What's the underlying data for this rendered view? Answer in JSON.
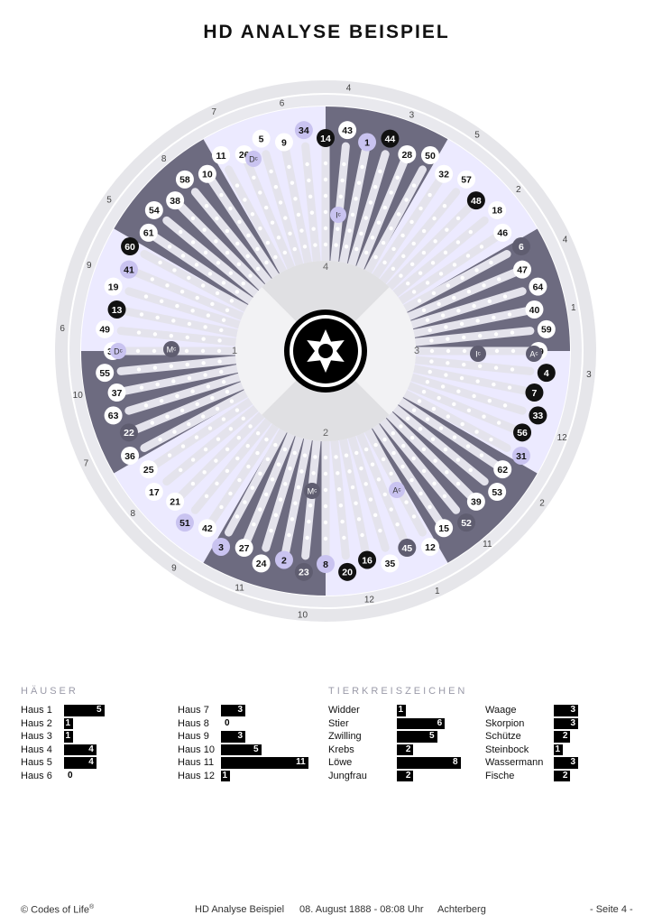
{
  "title": "HD ANALYSE BEISPIEL",
  "wheel": {
    "outer_numbers": [
      "4",
      "3",
      "5",
      "2",
      "4",
      "1",
      "3",
      "12",
      "2",
      "11",
      "1",
      "12",
      "10",
      "11",
      "9",
      "8",
      "7",
      "10",
      "6",
      "9",
      "5",
      "8",
      "7",
      "6"
    ],
    "house_numbers": [
      "1",
      "2",
      "3",
      "4"
    ],
    "gate_numbers": [
      "6",
      "26",
      "5",
      "9",
      "34",
      "14",
      "43",
      "1",
      "44",
      "28",
      "50",
      "32",
      "57",
      "48",
      "18",
      "46",
      "6",
      "47",
      "64",
      "40",
      "59",
      "29",
      "4",
      "7",
      "33",
      "56",
      "31",
      "62",
      "53",
      "39",
      "52",
      "15",
      "12",
      "45",
      "35",
      "16",
      "20",
      "8",
      "23",
      "2",
      "24",
      "27",
      "3",
      "42",
      "51",
      "21",
      "17",
      "25",
      "36",
      "22",
      "63",
      "37",
      "55",
      "30",
      "49",
      "13",
      "19",
      "41",
      "60",
      "61",
      "54",
      "38",
      "58",
      "10",
      "11"
    ],
    "inner_labels": [
      "Dᶜ",
      "Mᶜ",
      "Iᶜ",
      "Aᶜ",
      "Dᶜ",
      "Mᶜ",
      "Aᶜ",
      "Iᶜ"
    ]
  },
  "sections": {
    "houses_title": "HÄUSER",
    "zodiac_title": "TIERKREISZEICHEN"
  },
  "houses": [
    {
      "label": "Haus 1",
      "value": 5
    },
    {
      "label": "Haus 2",
      "value": 1
    },
    {
      "label": "Haus 3",
      "value": 1
    },
    {
      "label": "Haus 4",
      "value": 4
    },
    {
      "label": "Haus 5",
      "value": 4
    },
    {
      "label": "Haus 6",
      "value": 0
    },
    {
      "label": "Haus 7",
      "value": 3
    },
    {
      "label": "Haus 8",
      "value": 0
    },
    {
      "label": "Haus 9",
      "value": 3
    },
    {
      "label": "Haus 10",
      "value": 5
    },
    {
      "label": "Haus 11",
      "value": 11
    },
    {
      "label": "Haus 12",
      "value": 1
    }
  ],
  "zodiac": [
    {
      "label": "Widder",
      "value": 1
    },
    {
      "label": "Stier",
      "value": 6
    },
    {
      "label": "Zwilling",
      "value": 5
    },
    {
      "label": "Krebs",
      "value": 2
    },
    {
      "label": "Löwe",
      "value": 8
    },
    {
      "label": "Jungfrau",
      "value": 2
    },
    {
      "label": "Waage",
      "value": 3
    },
    {
      "label": "Skorpion",
      "value": 3
    },
    {
      "label": "Schütze",
      "value": 2
    },
    {
      "label": "Steinbock",
      "value": 1
    },
    {
      "label": "Wassermann",
      "value": 3
    },
    {
      "label": "Fische",
      "value": 2
    }
  ],
  "footer": {
    "copyright": "© Codes of Life",
    "trademark": "®",
    "doc_title": "HD Analyse Beispiel",
    "datetime": "08. August 1888 - 08:08 Uhr",
    "place": "Achterberg",
    "page": "- Seite 4 -"
  },
  "colors": {
    "dark_band": "#6d6b80",
    "light_band": "#eceaff",
    "ring": "#e6e6ea",
    "bubble_dark": "#111111",
    "bubble_gray": "#5f5d70",
    "bubble_lilac": "#c9c3f0"
  }
}
